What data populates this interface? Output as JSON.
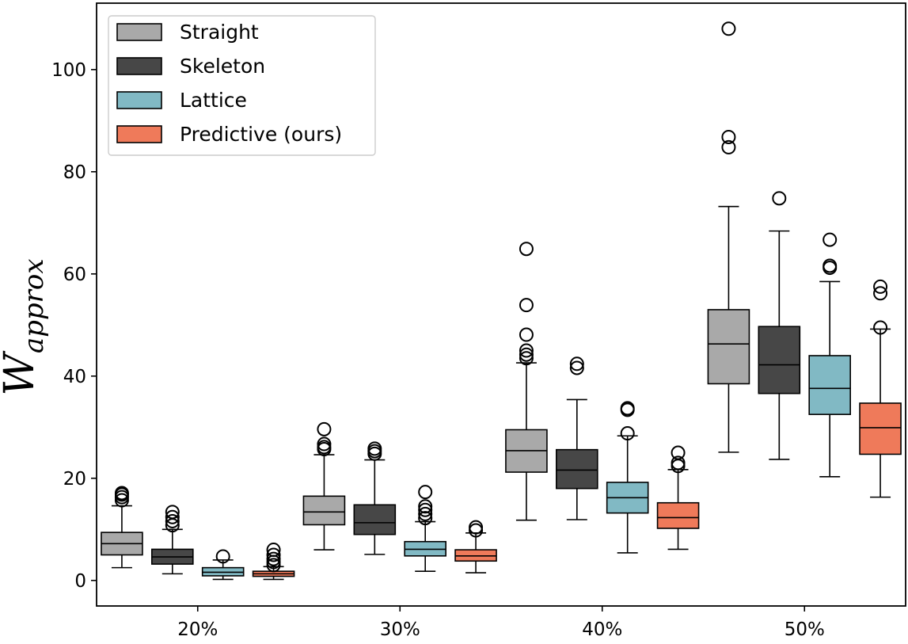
{
  "chart_data": {
    "type": "box",
    "title": "",
    "xlabel": "",
    "ylabel": {
      "main": "W",
      "subscript": "approx"
    },
    "ylim": [
      -5,
      113
    ],
    "yticks": [
      0,
      20,
      40,
      60,
      80,
      100
    ],
    "grid": false,
    "legend_position": "upper-left",
    "categories": [
      "20%",
      "30%",
      "40%",
      "50%"
    ],
    "series": [
      {
        "name": "Straight",
        "color": "#a9a9a9",
        "boxes": [
          {
            "whislo": 2.5,
            "q1": 5.0,
            "med": 7.2,
            "q3": 9.4,
            "whishi": 14.6,
            "fliers": [
              15.7,
              16.3,
              16.8,
              17.1
            ]
          },
          {
            "whislo": 6.0,
            "q1": 10.9,
            "med": 13.4,
            "q3": 16.5,
            "whishi": 24.6,
            "fliers": [
              25.7,
              26.1,
              26.7,
              29.6
            ]
          },
          {
            "whislo": 11.8,
            "q1": 21.2,
            "med": 25.4,
            "q3": 29.5,
            "whishi": 42.6,
            "fliers": [
              43.5,
              44.2,
              45.0,
              48.1,
              53.9,
              64.9
            ]
          },
          {
            "whislo": 25.1,
            "q1": 38.5,
            "med": 46.3,
            "q3": 53.0,
            "whishi": 73.2,
            "fliers": [
              84.8,
              86.8,
              108.0
            ]
          }
        ]
      },
      {
        "name": "Skeleton",
        "color": "#474747",
        "boxes": [
          {
            "whislo": 1.3,
            "q1": 3.2,
            "med": 4.6,
            "q3": 6.1,
            "whishi": 10.0,
            "fliers": [
              10.8,
              11.6,
              12.4,
              13.4
            ]
          },
          {
            "whislo": 5.1,
            "q1": 9.0,
            "med": 11.3,
            "q3": 14.8,
            "whishi": 23.6,
            "fliers": [
              24.8,
              25.3,
              25.8
            ]
          },
          {
            "whislo": 11.9,
            "q1": 18.0,
            "med": 21.6,
            "q3": 25.6,
            "whishi": 35.4,
            "fliers": [
              41.6,
              42.4
            ]
          },
          {
            "whislo": 23.7,
            "q1": 36.6,
            "med": 42.2,
            "q3": 49.7,
            "whishi": 68.4,
            "fliers": [
              74.8
            ]
          }
        ]
      },
      {
        "name": "Lattice",
        "color": "#81b9c4",
        "boxes": [
          {
            "whislo": 0.2,
            "q1": 0.9,
            "med": 1.6,
            "q3": 2.5,
            "whishi": 4.0,
            "fliers": [
              4.7
            ]
          },
          {
            "whislo": 1.8,
            "q1": 4.8,
            "med": 6.1,
            "q3": 7.6,
            "whishi": 11.5,
            "fliers": [
              12.2,
              13.0,
              13.8,
              14.5,
              17.3
            ]
          },
          {
            "whislo": 5.4,
            "q1": 13.2,
            "med": 16.2,
            "q3": 19.2,
            "whishi": 28.3,
            "fliers": [
              28.8,
              33.4,
              33.7
            ]
          },
          {
            "whislo": 20.3,
            "q1": 32.5,
            "med": 37.6,
            "q3": 44.0,
            "whishi": 58.5,
            "fliers": [
              61.2,
              61.6,
              66.7
            ]
          }
        ]
      },
      {
        "name": "Predictive (ours)",
        "color": "#ef7a5a",
        "boxes": [
          {
            "whislo": 0.2,
            "q1": 0.8,
            "med": 1.3,
            "q3": 1.8,
            "whishi": 2.7,
            "fliers": [
              3.0,
              3.6,
              4.2,
              5.0,
              6.0
            ]
          },
          {
            "whislo": 1.5,
            "q1": 3.8,
            "med": 4.8,
            "q3": 6.0,
            "whishi": 9.3,
            "fliers": [
              9.8,
              10.4
            ]
          },
          {
            "whislo": 6.1,
            "q1": 10.2,
            "med": 12.3,
            "q3": 15.2,
            "whishi": 21.7,
            "fliers": [
              22.4,
              23.0,
              25.0
            ]
          },
          {
            "whislo": 16.3,
            "q1": 24.7,
            "med": 29.9,
            "q3": 34.7,
            "whishi": 49.2,
            "fliers": [
              49.5,
              56.2,
              57.5
            ]
          }
        ]
      }
    ]
  }
}
